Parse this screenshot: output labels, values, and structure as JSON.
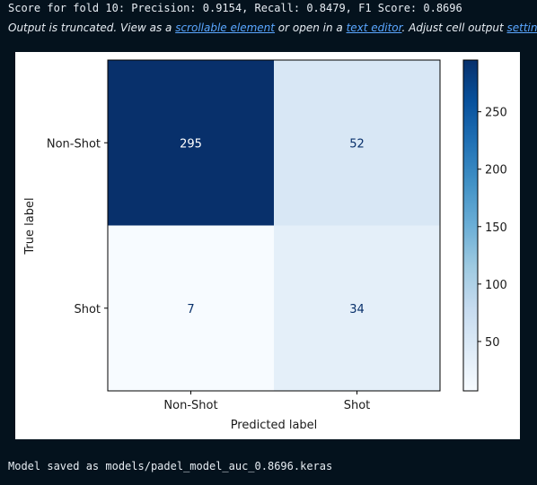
{
  "output": {
    "score_line": "Score for fold 10: Precision: 0.9154, Recall: 0.8479, F1 Score: 0.8696",
    "truncated_notice": {
      "prefix": "Output is truncated. View as a ",
      "scrollable_link": "scrollable element",
      "middle": " or open in a ",
      "editor_link": "text editor",
      "suffix_before_settings": ". Adjust cell output ",
      "settings_link": "settings",
      "ellipsis": "..."
    },
    "saved_line": "Model saved as models/padel_model_auc_0.8696.keras"
  },
  "colors": {
    "background": "#04121d",
    "link": "#5aa6ff",
    "text": "#e7edf3"
  },
  "chart_data": {
    "type": "heatmap",
    "rows": [
      "Non-Shot",
      "Shot"
    ],
    "columns": [
      "Non-Shot",
      "Shot"
    ],
    "values": [
      [
        295,
        52
      ],
      [
        7,
        34
      ]
    ],
    "xlabel": "Predicted label",
    "ylabel": "True label",
    "colormap": "Blues",
    "colorbar": {
      "min": 7,
      "max": 295,
      "ticks": [
        50,
        100,
        150,
        200,
        250
      ]
    }
  }
}
